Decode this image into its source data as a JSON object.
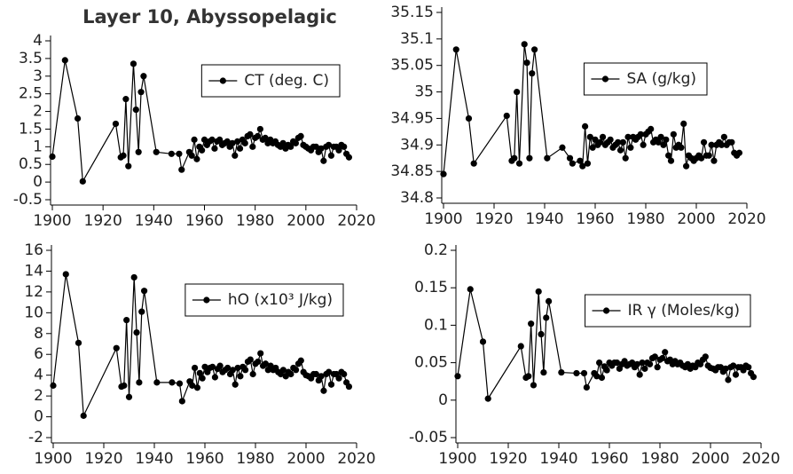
{
  "chart_data": [
    {
      "type": "line",
      "title": "Layer 10, Abyssopelagic",
      "x": [
        1900,
        1905,
        1910,
        1912,
        1925,
        1927,
        1928,
        1929,
        1930,
        1932,
        1933,
        1934,
        1935,
        1936,
        1941,
        1947,
        1950,
        1951,
        1954,
        1955,
        1956,
        1957,
        1958,
        1959,
        1960,
        1961,
        1962,
        1963,
        1964,
        1965,
        1966,
        1967,
        1968,
        1969,
        1970,
        1971,
        1972,
        1973,
        1974,
        1975,
        1976,
        1977,
        1978,
        1979,
        1980,
        1981,
        1982,
        1983,
        1984,
        1985,
        1986,
        1987,
        1988,
        1989,
        1990,
        1991,
        1992,
        1993,
        1994,
        1995,
        1996,
        1997,
        1998,
        1999,
        2000,
        2001,
        2002,
        2003,
        2004,
        2005,
        2006,
        2007,
        2008,
        2009,
        2010,
        2011,
        2012,
        2013,
        2014,
        2015,
        2016,
        2017
      ],
      "series": [
        {
          "name": "CT (deg. C)",
          "color": "#000000",
          "values": [
            0.72,
            3.45,
            1.8,
            0.02,
            1.65,
            0.7,
            0.75,
            2.35,
            0.45,
            3.35,
            2.05,
            0.85,
            2.55,
            3.0,
            0.85,
            0.8,
            0.8,
            0.35,
            0.85,
            0.75,
            1.2,
            0.65,
            1.0,
            0.9,
            1.2,
            1.05,
            1.15,
            1.2,
            0.95,
            1.15,
            1.2,
            1.05,
            1.1,
            1.15,
            1.0,
            1.1,
            0.75,
            1.15,
            0.95,
            1.2,
            1.1,
            1.3,
            1.35,
            1.0,
            1.25,
            1.3,
            1.5,
            1.2,
            1.25,
            1.1,
            1.2,
            1.1,
            1.15,
            1.05,
            1.0,
            1.1,
            0.95,
            1.05,
            1.0,
            1.15,
            1.1,
            1.25,
            1.3,
            1.05,
            1.0,
            0.95,
            0.9,
            1.0,
            1.0,
            0.85,
            0.95,
            0.6,
            1.0,
            1.05,
            0.75,
            1.0,
            1.0,
            0.9,
            1.05,
            1.0,
            0.8,
            0.7
          ]
        }
      ],
      "xlim": [
        1900,
        2020
      ],
      "xticks": [
        1900,
        1920,
        1940,
        1960,
        1980,
        2000,
        2020
      ],
      "ylim": [
        -0.5,
        4
      ],
      "yticks": [
        -0.5,
        0,
        0.5,
        1,
        1.5,
        2,
        2.5,
        3,
        3.5,
        4
      ],
      "legend": "upper right"
    },
    {
      "type": "line",
      "x": [
        1900,
        1905,
        1910,
        1912,
        1925,
        1927,
        1928,
        1929,
        1930,
        1932,
        1933,
        1934,
        1935,
        1936,
        1941,
        1947,
        1950,
        1951,
        1954,
        1955,
        1956,
        1957,
        1958,
        1959,
        1960,
        1961,
        1962,
        1963,
        1964,
        1965,
        1966,
        1967,
        1968,
        1969,
        1970,
        1971,
        1972,
        1973,
        1974,
        1975,
        1976,
        1977,
        1978,
        1979,
        1980,
        1981,
        1982,
        1983,
        1984,
        1985,
        1986,
        1987,
        1988,
        1989,
        1990,
        1991,
        1992,
        1993,
        1994,
        1995,
        1996,
        1997,
        1998,
        1999,
        2000,
        2001,
        2002,
        2003,
        2004,
        2005,
        2006,
        2007,
        2008,
        2009,
        2010,
        2011,
        2012,
        2013,
        2014,
        2015,
        2016,
        2017
      ],
      "series": [
        {
          "name": "SA (g/kg)",
          "color": "#000000",
          "values": [
            34.845,
            35.08,
            34.95,
            34.865,
            34.955,
            34.87,
            34.875,
            35.0,
            34.865,
            35.09,
            35.055,
            34.875,
            35.035,
            35.08,
            34.875,
            34.895,
            34.875,
            34.865,
            34.87,
            34.86,
            34.935,
            34.865,
            34.915,
            34.895,
            34.91,
            34.9,
            34.905,
            34.915,
            34.9,
            34.905,
            34.91,
            34.895,
            34.9,
            34.905,
            34.89,
            34.905,
            34.875,
            34.915,
            34.895,
            34.915,
            34.91,
            34.915,
            34.92,
            34.9,
            34.92,
            34.925,
            34.93,
            34.905,
            34.91,
            34.905,
            34.915,
            34.9,
            34.91,
            34.88,
            34.87,
            34.92,
            34.895,
            34.9,
            34.895,
            34.94,
            34.86,
            34.88,
            34.875,
            34.87,
            34.875,
            34.88,
            34.875,
            34.905,
            34.88,
            34.88,
            34.9,
            34.87,
            34.9,
            34.905,
            34.9,
            34.915,
            34.9,
            34.905,
            34.905,
            34.885,
            34.88,
            34.885
          ]
        }
      ],
      "xlim": [
        1900,
        2020
      ],
      "xticks": [
        1900,
        1920,
        1940,
        1960,
        1980,
        2000,
        2020
      ],
      "ylim": [
        34.8,
        35.15
      ],
      "yticks": [
        34.8,
        34.85,
        34.9,
        34.95,
        35,
        35.05,
        35.1,
        35.15
      ],
      "legend": "upper right"
    },
    {
      "type": "line",
      "x": [
        1900,
        1905,
        1910,
        1912,
        1925,
        1927,
        1928,
        1929,
        1930,
        1932,
        1933,
        1934,
        1935,
        1936,
        1941,
        1947,
        1950,
        1951,
        1954,
        1955,
        1956,
        1957,
        1958,
        1959,
        1960,
        1961,
        1962,
        1963,
        1964,
        1965,
        1966,
        1967,
        1968,
        1969,
        1970,
        1971,
        1972,
        1973,
        1974,
        1975,
        1976,
        1977,
        1978,
        1979,
        1980,
        1981,
        1982,
        1983,
        1984,
        1985,
        1986,
        1987,
        1988,
        1989,
        1990,
        1991,
        1992,
        1993,
        1994,
        1995,
        1996,
        1997,
        1998,
        1999,
        2000,
        2001,
        2002,
        2003,
        2004,
        2005,
        2006,
        2007,
        2008,
        2009,
        2010,
        2011,
        2012,
        2013,
        2014,
        2015,
        2016,
        2017
      ],
      "series": [
        {
          "name": "hO (x10³ J/kg)",
          "color": "#000000",
          "values": [
            3.0,
            13.7,
            7.1,
            0.1,
            6.6,
            2.9,
            3.0,
            9.3,
            1.9,
            13.4,
            8.1,
            3.3,
            10.1,
            12.1,
            3.3,
            3.3,
            3.2,
            1.5,
            3.4,
            3.0,
            4.7,
            2.8,
            4.2,
            3.7,
            4.8,
            4.3,
            4.7,
            4.8,
            3.8,
            4.6,
            4.9,
            4.3,
            4.5,
            4.7,
            4.1,
            4.5,
            3.1,
            4.7,
            3.9,
            4.8,
            4.5,
            5.3,
            5.5,
            4.1,
            5.1,
            5.3,
            6.1,
            4.9,
            5.1,
            4.5,
            4.9,
            4.5,
            4.7,
            4.3,
            4.1,
            4.5,
            3.9,
            4.3,
            4.1,
            4.7,
            4.5,
            5.1,
            5.4,
            4.3,
            4.0,
            3.9,
            3.7,
            4.1,
            4.1,
            3.5,
            3.9,
            2.5,
            4.1,
            4.3,
            3.1,
            4.1,
            4.1,
            3.7,
            4.3,
            4.1,
            3.3,
            2.9
          ]
        }
      ],
      "xlim": [
        1900,
        2020
      ],
      "xticks": [
        1900,
        1920,
        1940,
        1960,
        1980,
        2000,
        2020
      ],
      "ylim": [
        -2,
        16
      ],
      "yticks": [
        -2,
        0,
        2,
        4,
        6,
        8,
        10,
        12,
        14,
        16
      ],
      "legend": "upper right"
    },
    {
      "type": "line",
      "x": [
        1900,
        1905,
        1910,
        1912,
        1925,
        1927,
        1928,
        1929,
        1930,
        1932,
        1933,
        1934,
        1935,
        1936,
        1941,
        1947,
        1950,
        1951,
        1954,
        1955,
        1956,
        1957,
        1958,
        1959,
        1960,
        1961,
        1962,
        1963,
        1964,
        1965,
        1966,
        1967,
        1968,
        1969,
        1970,
        1971,
        1972,
        1973,
        1974,
        1975,
        1976,
        1977,
        1978,
        1979,
        1980,
        1981,
        1982,
        1983,
        1984,
        1985,
        1986,
        1987,
        1988,
        1989,
        1990,
        1991,
        1992,
        1993,
        1994,
        1995,
        1996,
        1997,
        1998,
        1999,
        2000,
        2001,
        2002,
        2003,
        2004,
        2005,
        2006,
        2007,
        2008,
        2009,
        2010,
        2011,
        2012,
        2013,
        2014,
        2015,
        2016,
        2017
      ],
      "series": [
        {
          "name": "IR γ (Moles/kg)",
          "color": "#000000",
          "values": [
            0.032,
            0.148,
            0.078,
            0.002,
            0.072,
            0.03,
            0.032,
            0.102,
            0.02,
            0.145,
            0.088,
            0.037,
            0.11,
            0.132,
            0.037,
            0.036,
            0.036,
            0.017,
            0.036,
            0.032,
            0.05,
            0.03,
            0.045,
            0.04,
            0.05,
            0.046,
            0.05,
            0.05,
            0.042,
            0.048,
            0.052,
            0.046,
            0.048,
            0.05,
            0.044,
            0.048,
            0.034,
            0.05,
            0.042,
            0.05,
            0.048,
            0.056,
            0.058,
            0.044,
            0.054,
            0.056,
            0.064,
            0.052,
            0.054,
            0.048,
            0.052,
            0.048,
            0.05,
            0.046,
            0.044,
            0.048,
            0.042,
            0.046,
            0.044,
            0.05,
            0.048,
            0.054,
            0.058,
            0.046,
            0.043,
            0.042,
            0.04,
            0.044,
            0.044,
            0.038,
            0.042,
            0.027,
            0.044,
            0.046,
            0.034,
            0.044,
            0.044,
            0.04,
            0.046,
            0.044,
            0.036,
            0.031
          ]
        }
      ],
      "xlim": [
        1900,
        2020
      ],
      "xticks": [
        1900,
        1920,
        1940,
        1960,
        1980,
        2000,
        2020
      ],
      "ylim": [
        -0.05,
        0.2
      ],
      "yticks": [
        -0.05,
        0,
        0.05,
        0.1,
        0.15,
        0.2
      ],
      "legend": "upper right"
    }
  ]
}
